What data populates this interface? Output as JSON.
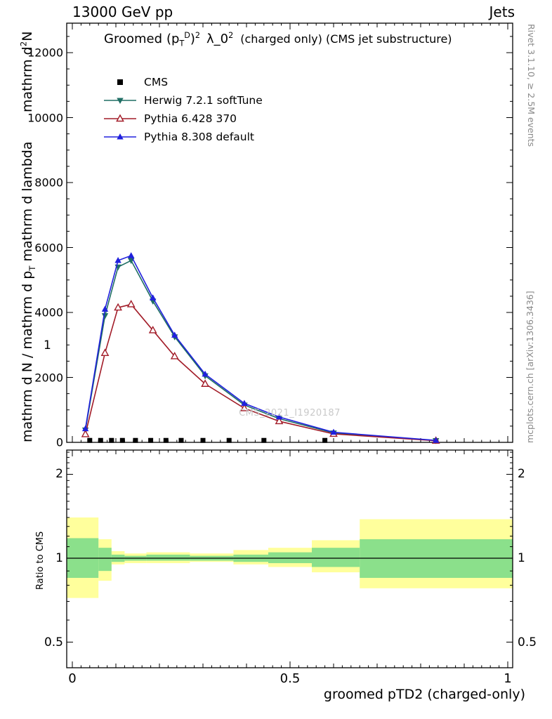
{
  "header": {
    "left_label": "13000 GeV pp",
    "right_label": "Jets"
  },
  "title": {
    "word": "Groomed",
    "p_open": "(p",
    "p_sub": "T",
    "p_sup": "D",
    "p_close": ")",
    "p_sup2": "2",
    "lambda": "λ_0",
    "lambda_sup2": "2",
    "tail": "(charged only) (CMS jet substructure)"
  },
  "legend": {
    "items": [
      {
        "label": "CMS",
        "series": 0
      },
      {
        "label": "Herwig 7.2.1 softTune",
        "series": 1
      },
      {
        "label": "Pythia 6.428 370",
        "series": 2
      },
      {
        "label": "Pythia 8.308 default",
        "series": 3
      }
    ]
  },
  "watermark": "CMS_2021_I1920187",
  "side_notes": {
    "rivet": "Rivet 3.1.10, ≥ 2.5M events",
    "mcplots": "mcplots.cern.ch [arXiv:1306.3436]"
  },
  "axes": {
    "y_label_upper": {
      "pre": "mathrm d",
      "sup": "2",
      "post": "N"
    },
    "y_label_lower": {
      "a": "mathrm d N / mathrm d p",
      "sub": "T",
      "b": " mathrm d lambda"
    },
    "stray_tick": "1",
    "ratio_label": "Ratio to CMS",
    "x_label": "groomed pTD2 (charged-only)",
    "x_ticks": [
      {
        "v": 0,
        "label": "0"
      },
      {
        "v": 0.5,
        "label": "0.5"
      },
      {
        "v": 1,
        "label": "1"
      }
    ],
    "main_y_ticks": [
      {
        "v": 0,
        "label": "0"
      },
      {
        "v": 2000,
        "label": "2000"
      },
      {
        "v": 4000,
        "label": "4000"
      },
      {
        "v": 6000,
        "label": "6000"
      },
      {
        "v": 8000,
        "label": "8000"
      },
      {
        "v": 10000,
        "label": "10000"
      },
      {
        "v": 12000,
        "label": "12000"
      }
    ],
    "ratio_y_ticks": [
      {
        "v": 0.5,
        "label": "0.5"
      },
      {
        "v": 1,
        "label": "1"
      },
      {
        "v": 2,
        "label": "2"
      }
    ]
  },
  "chart_data": {
    "type": "line",
    "title": "Groomed (p_T^D)^2 λ_0^2 (charged only) (CMS jet substructure)",
    "xlabel": "groomed pTD2 (charged-only)",
    "ylabel": "mathrm d^2 N / mathrm d p_T mathrm d lambda",
    "xlim": [
      0,
      1
    ],
    "ylim": [
      0,
      12900
    ],
    "ratio_ylim": [
      0.4,
      2.45
    ],
    "ratio_scale": "log",
    "grid": false,
    "legend_position": "top-left",
    "x": [
      0.03,
      0.075,
      0.105,
      0.135,
      0.185,
      0.235,
      0.305,
      0.395,
      0.475,
      0.6,
      0.835
    ],
    "series": [
      {
        "name": "CMS",
        "color": "#000000",
        "marker": "filled-square",
        "style": "markers",
        "x": [
          0.04,
          0.065,
          0.09,
          0.115,
          0.145,
          0.18,
          0.215,
          0.25,
          0.3,
          0.36,
          0.44,
          0.58
        ],
        "y": [
          60,
          60,
          60,
          60,
          60,
          60,
          60,
          60,
          60,
          60,
          60,
          60
        ]
      },
      {
        "name": "Herwig 7.2.1 softTune",
        "color": "#1f6e64",
        "marker": "filled-triangle-down",
        "style": "line-markers",
        "y": [
          380,
          3900,
          5400,
          5600,
          4350,
          3250,
          2050,
          1150,
          730,
          290,
          55
        ]
      },
      {
        "name": "Pythia 6.428 370",
        "color": "#a21c28",
        "marker": "open-triangle-up",
        "style": "line-markers",
        "y": [
          250,
          2750,
          4150,
          4250,
          3450,
          2650,
          1800,
          1050,
          650,
          260,
          50
        ]
      },
      {
        "name": "Pythia 8.308 default",
        "color": "#2020dd",
        "marker": "filled-triangle-up",
        "style": "line-markers",
        "y": [
          420,
          4100,
          5600,
          5750,
          4450,
          3300,
          2100,
          1200,
          780,
          310,
          60
        ]
      }
    ],
    "ratio_panel": {
      "reference": 1,
      "band_colors": {
        "outer": "#ffff9c",
        "inner": "#8be08b"
      },
      "bands": [
        {
          "x0": 0.0,
          "x1": 0.06,
          "yellow": [
            0.72,
            1.4
          ],
          "green": [
            0.85,
            1.18
          ]
        },
        {
          "x0": 0.06,
          "x1": 0.09,
          "yellow": [
            0.83,
            1.17
          ],
          "green": [
            0.9,
            1.09
          ]
        },
        {
          "x0": 0.09,
          "x1": 0.12,
          "yellow": [
            0.95,
            1.06
          ],
          "green": [
            0.97,
            1.03
          ]
        },
        {
          "x0": 0.12,
          "x1": 0.17,
          "yellow": [
            0.96,
            1.04
          ],
          "green": [
            0.98,
            1.02
          ]
        },
        {
          "x0": 0.17,
          "x1": 0.27,
          "yellow": [
            0.96,
            1.05
          ],
          "green": [
            0.98,
            1.03
          ]
        },
        {
          "x0": 0.27,
          "x1": 0.37,
          "yellow": [
            0.97,
            1.04
          ],
          "green": [
            0.98,
            1.02
          ]
        },
        {
          "x0": 0.37,
          "x1": 0.45,
          "yellow": [
            0.95,
            1.07
          ],
          "green": [
            0.97,
            1.03
          ]
        },
        {
          "x0": 0.45,
          "x1": 0.55,
          "yellow": [
            0.93,
            1.09
          ],
          "green": [
            0.96,
            1.05
          ]
        },
        {
          "x0": 0.55,
          "x1": 0.66,
          "yellow": [
            0.89,
            1.16
          ],
          "green": [
            0.93,
            1.09
          ]
        },
        {
          "x0": 0.66,
          "x1": 1.0,
          "yellow": [
            0.78,
            1.38
          ],
          "green": [
            0.85,
            1.17
          ]
        }
      ]
    }
  }
}
